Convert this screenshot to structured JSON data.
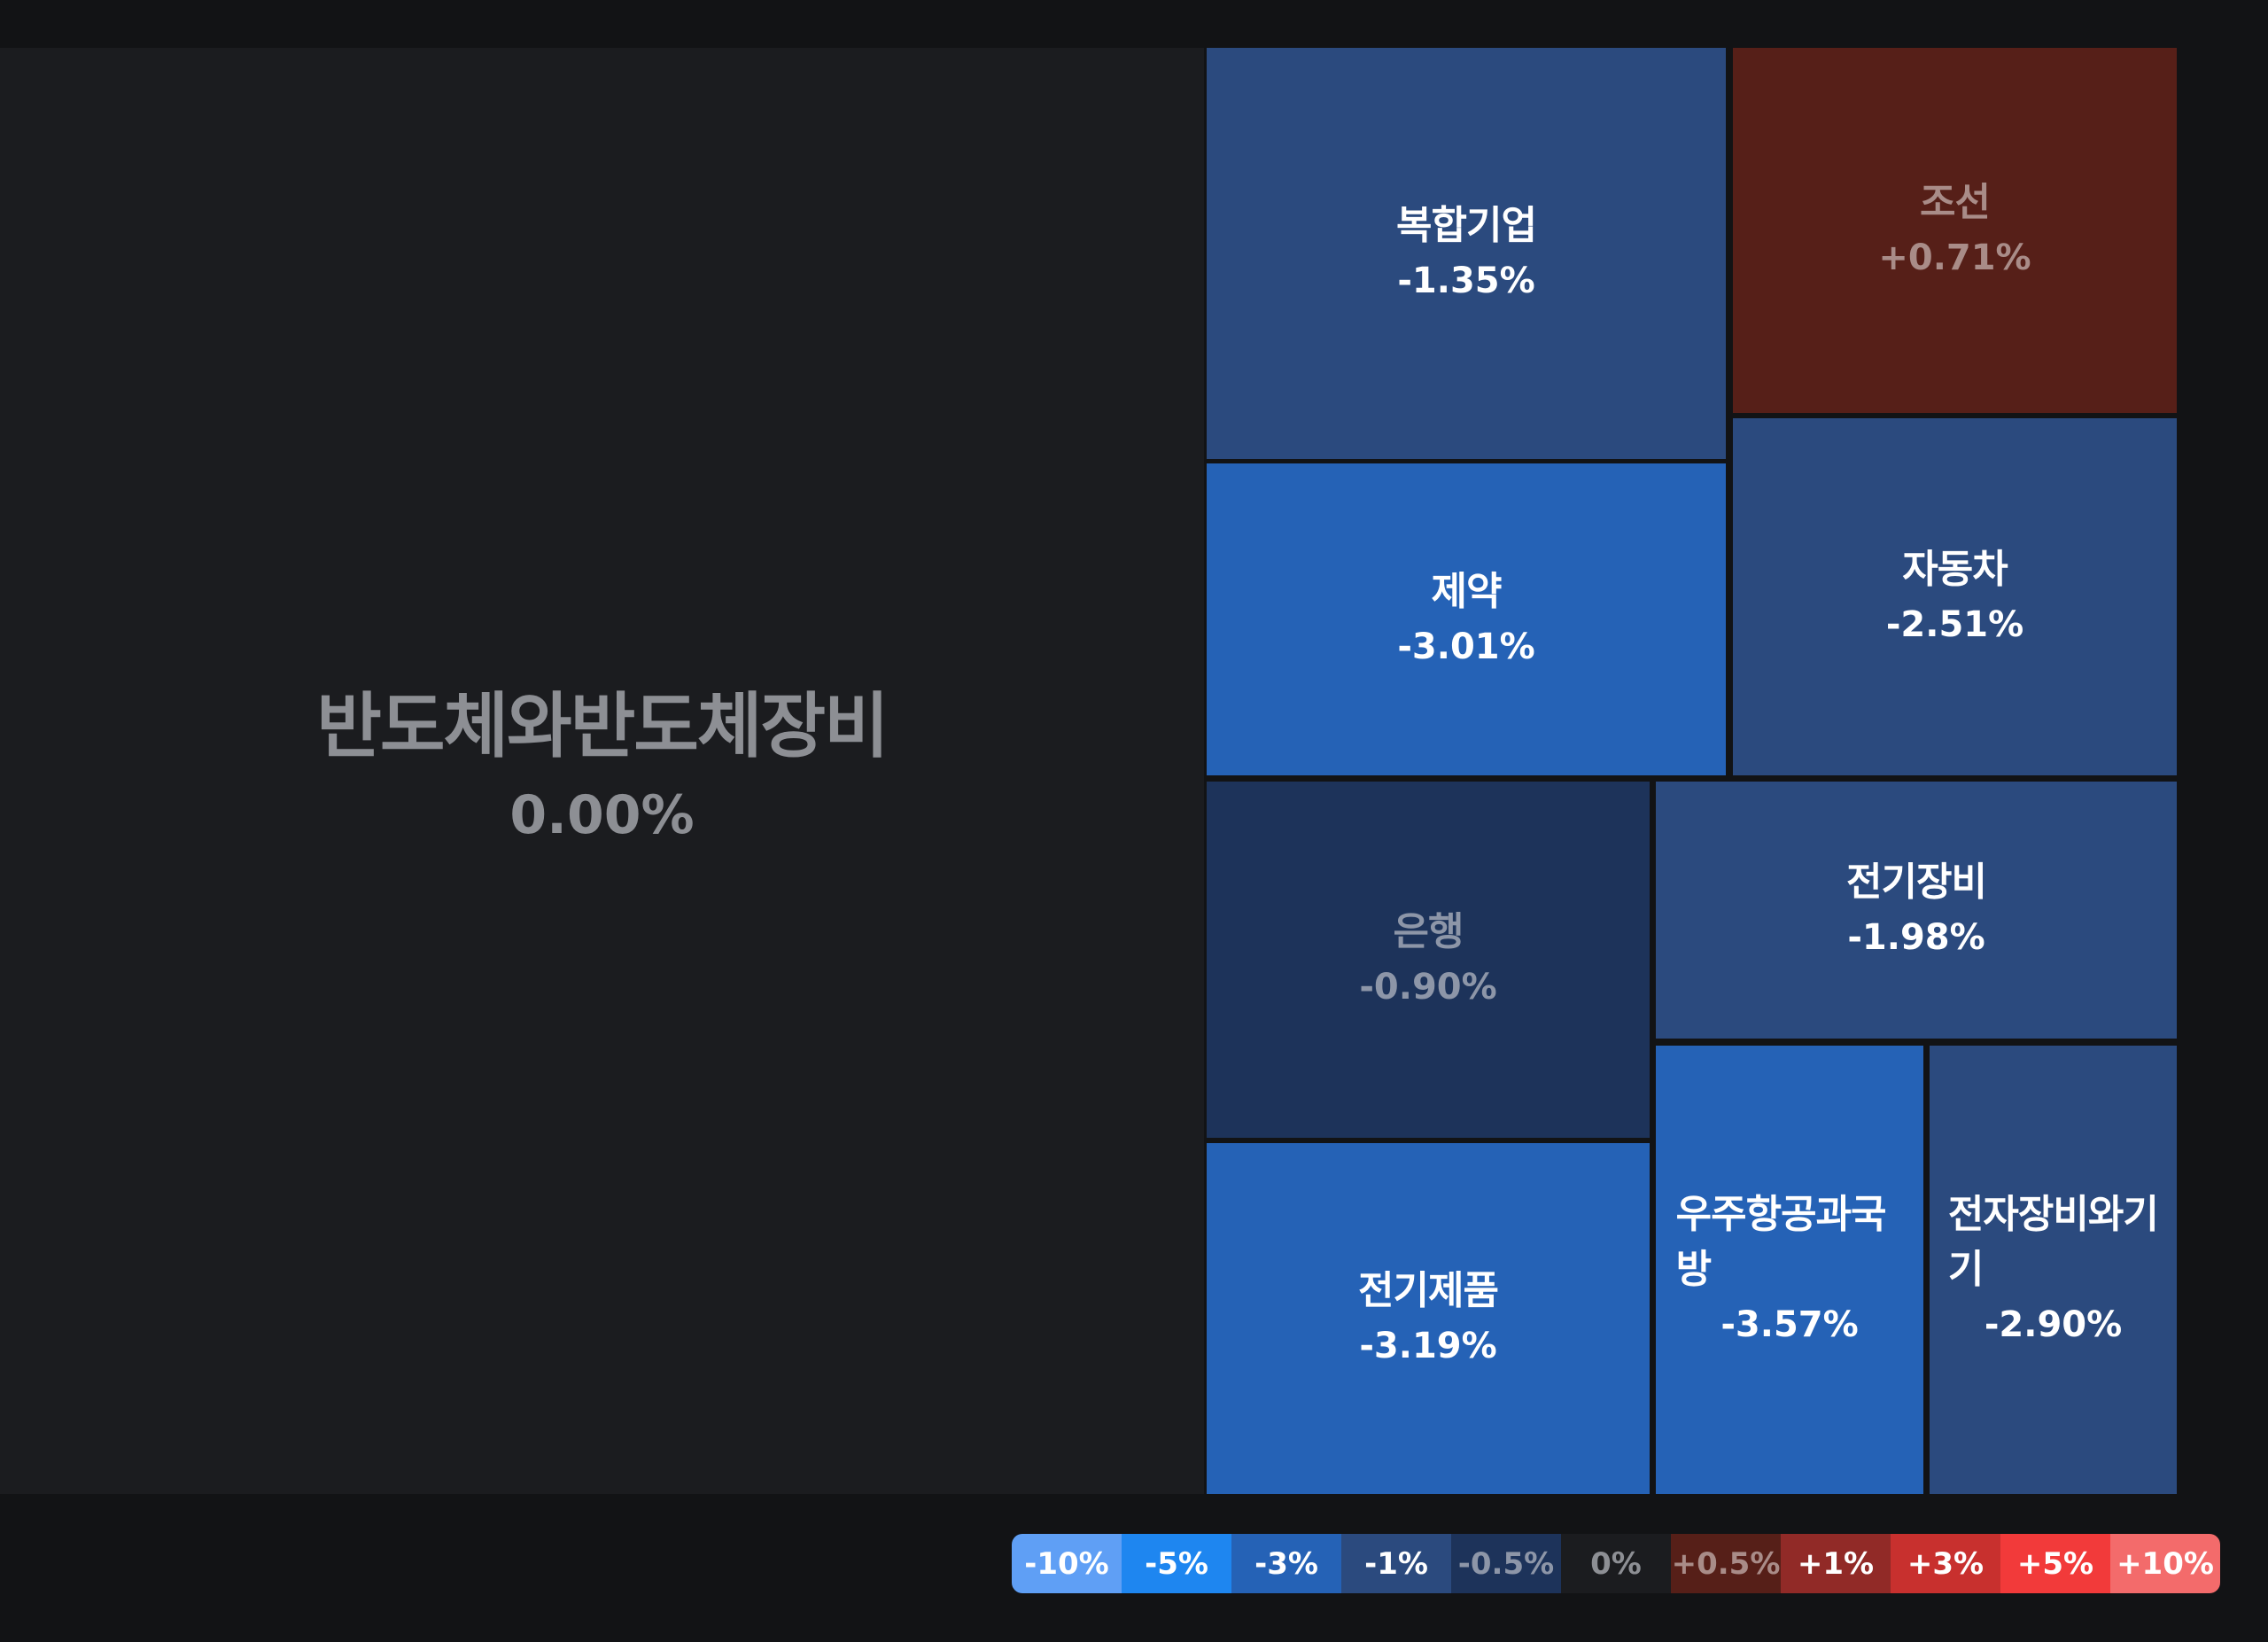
{
  "chart_data": {
    "type": "heatmap",
    "tiles": [
      {
        "name": "반도체와반도체장비",
        "change": "0.00%",
        "value": 0.0,
        "color": "#1b1c1f",
        "text_color": "#8d8f94"
      },
      {
        "name": "복합기업",
        "change": "-1.35%",
        "value": -1.35,
        "color": "#2b4a7e",
        "text_color": "#ffffff"
      },
      {
        "name": "조선",
        "change": "+0.71%",
        "value": 0.71,
        "color": "#561f18",
        "text_color": "#a98c88"
      },
      {
        "name": "제약",
        "change": "-3.01%",
        "value": -3.01,
        "color": "#2562b6",
        "text_color": "#ffffff"
      },
      {
        "name": "자동차",
        "change": "-2.51%",
        "value": -2.51,
        "color": "#2b4a7e",
        "text_color": "#ffffff"
      },
      {
        "name": "은행",
        "change": "-0.90%",
        "value": -0.9,
        "color": "#1d335a",
        "text_color": "#8d96a8"
      },
      {
        "name": "전기장비",
        "change": "-1.98%",
        "value": -1.98,
        "color": "#2b4a7e",
        "text_color": "#ffffff"
      },
      {
        "name": "전기제품",
        "change": "-3.19%",
        "value": -3.19,
        "color": "#2562b6",
        "text_color": "#ffffff"
      },
      {
        "name": "우주항공과국방",
        "change": "-3.57%",
        "value": -3.57,
        "color": "#2562b6",
        "text_color": "#ffffff"
      },
      {
        "name": "전자장비와기기",
        "change": "-2.90%",
        "value": -2.9,
        "color": "#2b4a7e",
        "text_color": "#ffffff"
      }
    ],
    "legend": [
      {
        "label": "-10%",
        "color": "#5f9ff5",
        "text_color": "#ffffff"
      },
      {
        "label": "-5%",
        "color": "#1e86f0",
        "text_color": "#ffffff"
      },
      {
        "label": "-3%",
        "color": "#2562b6",
        "text_color": "#ffffff"
      },
      {
        "label": "-1%",
        "color": "#2b4a7e",
        "text_color": "#ffffff"
      },
      {
        "label": "-0.5%",
        "color": "#1d335a",
        "text_color": "#8d96a8"
      },
      {
        "label": "0%",
        "color": "#1b1c1f",
        "text_color": "#8d8f94"
      },
      {
        "label": "+0.5%",
        "color": "#561f18",
        "text_color": "#a98c88"
      },
      {
        "label": "+1%",
        "color": "#912a27",
        "text_color": "#ffffff"
      },
      {
        "label": "+3%",
        "color": "#c8302e",
        "text_color": "#ffffff"
      },
      {
        "label": "+5%",
        "color": "#f23a3a",
        "text_color": "#ffffff"
      },
      {
        "label": "+10%",
        "color": "#f36b6b",
        "text_color": "#ffffff"
      }
    ]
  }
}
